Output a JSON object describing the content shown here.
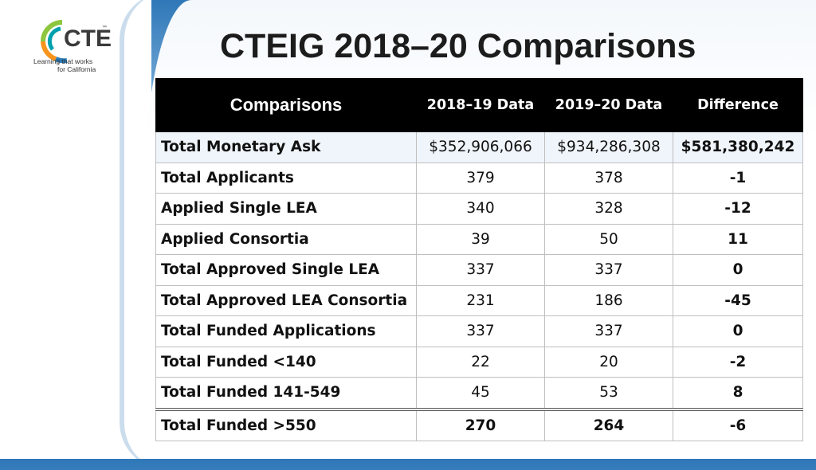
{
  "logo": {
    "brand": "CTE",
    "tagline_line1": "Learning that works",
    "tagline_line2": "for California",
    "colors": {
      "green": "#8dc63f",
      "orange": "#f7941d",
      "blue": "#2a7ab8",
      "teal": "#00a0af"
    }
  },
  "title": "CTEIG 2018–20 Comparisons",
  "table": {
    "headers": [
      "Comparisons",
      "2018–19 Data",
      "2019–20 Data",
      "Difference"
    ],
    "rows": [
      {
        "label": "Total Monetary Ask",
        "y2018": "$352,906,066",
        "y2019": "$934,286,308",
        "diff": "$581,380,242"
      },
      {
        "label": "Total Applicants",
        "y2018": "379",
        "y2019": "378",
        "diff": "-1"
      },
      {
        "label": "Applied Single LEA",
        "y2018": "340",
        "y2019": "328",
        "diff": "-12"
      },
      {
        "label": "Applied Consortia",
        "y2018": "39",
        "y2019": "50",
        "diff": "11"
      },
      {
        "label": "Total Approved Single LEA",
        "y2018": "337",
        "y2019": "337",
        "diff": "0"
      },
      {
        "label": "Total Approved LEA Consortia",
        "y2018": "231",
        "y2019": "186",
        "diff": "-45"
      },
      {
        "label": "Total Funded Applications",
        "y2018": "337",
        "y2019": "337",
        "diff": "0"
      },
      {
        "label": "Total Funded <140",
        "y2018": "22",
        "y2019": "20",
        "diff": "-2"
      },
      {
        "label": "Total Funded 141-549",
        "y2018": "45",
        "y2019": "53",
        "diff": "8"
      },
      {
        "label": "Total Funded >550",
        "y2018": "270",
        "y2019": "264",
        "diff": "-6"
      }
    ]
  }
}
